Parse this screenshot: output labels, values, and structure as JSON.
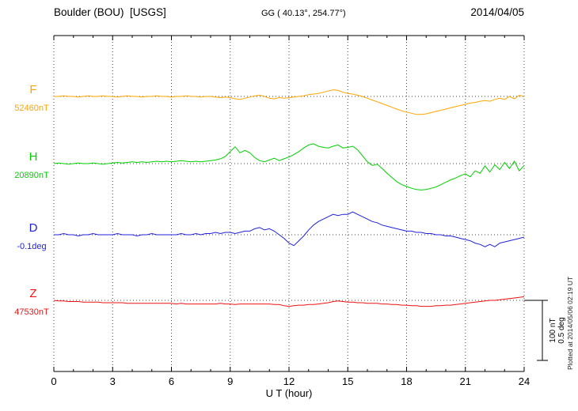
{
  "header": {
    "station": "Boulder (BOU)  [USGS]",
    "coordinates": "GG ( 40.13°, 254.77°)",
    "date": "2014/04/05"
  },
  "watermark": "Plotted at 2014/05/06 02:19 UT",
  "scale_bar": {
    "line1": "100 nT",
    "line2": "0.5 deg"
  },
  "chart_data": {
    "type": "line",
    "title": "Boulder (BOU)  [USGS] magnetogram",
    "xlabel": "U T (hour)",
    "xlim": [
      0,
      24
    ],
    "xticks": [
      0,
      3,
      6,
      9,
      12,
      15,
      18,
      21,
      24
    ],
    "grid": "dotted vertical every 3h, dotted horizontal at each trace baseline",
    "legend_position": "left-margin",
    "scale": {
      "nT_per_bar": 100,
      "deg_per_bar": 0.5
    },
    "x_start": 0,
    "x_step": 0.25,
    "series": [
      {
        "name": "F",
        "value_label": "52460nT",
        "base": 52460,
        "unit": "nT",
        "color": "#ffa500",
        "y": [
          0,
          0,
          1,
          0,
          0,
          -1,
          0,
          1,
          0,
          0,
          1,
          0,
          0,
          -1,
          0,
          1,
          0,
          0,
          -1,
          0,
          0,
          1,
          0,
          0,
          -1,
          0,
          0,
          1,
          0,
          0,
          -1,
          0,
          0,
          -1,
          -2,
          -1,
          -2,
          -4,
          -5,
          -3,
          -1,
          1,
          2,
          0,
          -3,
          -4,
          -2,
          -3,
          -2,
          -1,
          0,
          1,
          3,
          4,
          5,
          7,
          9,
          11,
          10,
          7,
          5,
          4,
          2,
          0,
          -3,
          -6,
          -9,
          -12,
          -15,
          -18,
          -21,
          -24,
          -26,
          -28,
          -30,
          -30,
          -29,
          -27,
          -25,
          -23,
          -21,
          -19,
          -17,
          -15,
          -13,
          -11,
          -10,
          -8,
          -7,
          -8,
          -5,
          -3,
          -5,
          0,
          -4,
          2,
          0
        ]
      },
      {
        "name": "H",
        "value_label": "20890nT",
        "base": 20890,
        "unit": "nT",
        "color": "#00d000",
        "y": [
          0,
          1,
          0,
          -1,
          0,
          1,
          0,
          0,
          1,
          0,
          -1,
          0,
          1,
          2,
          1,
          2,
          3,
          2,
          3,
          2,
          3,
          4,
          3,
          4,
          3,
          4,
          5,
          4,
          3,
          4,
          3,
          4,
          5,
          6,
          8,
          12,
          20,
          28,
          18,
          22,
          18,
          10,
          5,
          3,
          6,
          9,
          5,
          8,
          11,
          15,
          20,
          26,
          31,
          33,
          29,
          27,
          26,
          29,
          31,
          26,
          27,
          29,
          23,
          13,
          3,
          -3,
          -1,
          -8,
          -16,
          -23,
          -30,
          -35,
          -38,
          -41,
          -43,
          -44,
          -43,
          -41,
          -39,
          -35,
          -31,
          -27,
          -24,
          -20,
          -17,
          -22,
          -12,
          -16,
          -4,
          -14,
          -2,
          -10,
          2,
          -8,
          4,
          -12,
          -3
        ]
      },
      {
        "name": "D",
        "value_label": "-0.1deg",
        "base": -0.1,
        "unit": "deg",
        "color": "#2020dd",
        "y": [
          0,
          0,
          0.01,
          0,
          0,
          -0.01,
          0,
          0,
          0.01,
          0,
          0,
          0,
          0,
          0.01,
          0,
          0,
          0,
          -0.01,
          0,
          0,
          0.01,
          0,
          0,
          0,
          0,
          0,
          0.01,
          0,
          0,
          0.01,
          0,
          0.01,
          0.01,
          0.02,
          0.01,
          0.02,
          0.02,
          0.01,
          0.02,
          0.03,
          0.03,
          0.05,
          0.06,
          0.04,
          0.05,
          0.03,
          0,
          -0.03,
          -0.07,
          -0.09,
          -0.05,
          -0.01,
          0.04,
          0.08,
          0.11,
          0.13,
          0.15,
          0.17,
          0.16,
          0.17,
          0.17,
          0.19,
          0.17,
          0.15,
          0.13,
          0.11,
          0.1,
          0.08,
          0.07,
          0.06,
          0.05,
          0.04,
          0.03,
          0.03,
          0.02,
          0.02,
          0.01,
          0.01,
          0,
          0,
          -0.01,
          -0.01,
          -0.02,
          -0.03,
          -0.04,
          -0.05,
          -0.07,
          -0.08,
          -0.1,
          -0.08,
          -0.1,
          -0.07,
          -0.06,
          -0.05,
          -0.04,
          -0.03,
          -0.02
        ]
      },
      {
        "name": "Z",
        "value_label": "47530nT",
        "base": 47530,
        "unit": "nT",
        "color": "#ee1111",
        "y": [
          0,
          -1,
          -1,
          -2,
          -2,
          -2,
          -3,
          -3,
          -3,
          -3,
          -4,
          -4,
          -4,
          -4,
          -4,
          -5,
          -5,
          -5,
          -5,
          -5,
          -5,
          -5,
          -5,
          -5,
          -5,
          -6,
          -5,
          -6,
          -6,
          -6,
          -6,
          -6,
          -6,
          -6,
          -5,
          -6,
          -6,
          -7,
          -6,
          -6,
          -6,
          -6,
          -6,
          -6,
          -6,
          -7,
          -7,
          -9,
          -10,
          -9,
          -8,
          -8,
          -7,
          -7,
          -6,
          -5,
          -4,
          -2,
          -1,
          -2,
          -3,
          -3,
          -4,
          -4,
          -5,
          -5,
          -5,
          -6,
          -6,
          -7,
          -7,
          -8,
          -8,
          -9,
          -9,
          -10,
          -10,
          -10,
          -9,
          -9,
          -8,
          -8,
          -7,
          -6,
          -5,
          -4,
          -3,
          -2,
          -1,
          0,
          0,
          1,
          2,
          3,
          4,
          5,
          6
        ]
      }
    ]
  }
}
